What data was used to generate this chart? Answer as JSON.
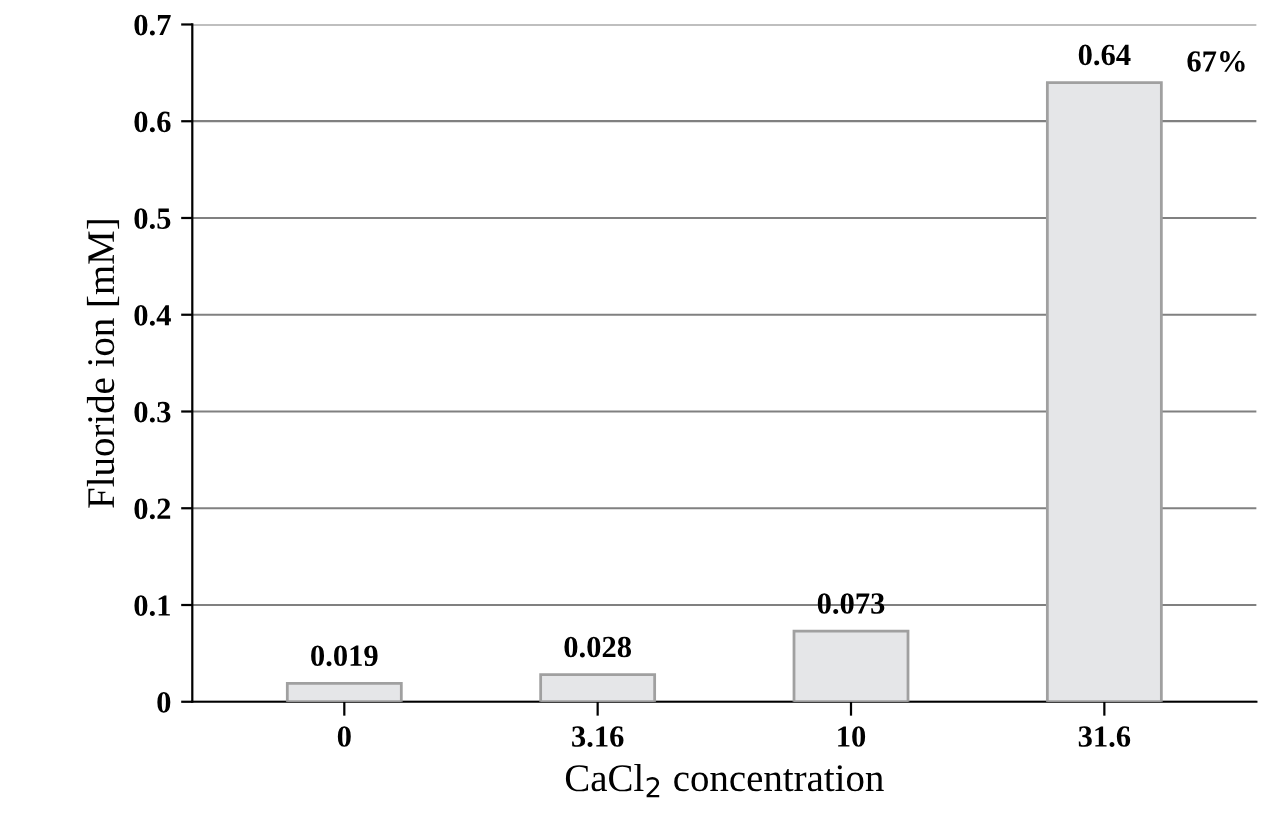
{
  "chart_data": {
    "type": "bar",
    "xlabel": "CaCl$_{2}$ concentration",
    "ylabel": "Fluoride ion [mM]",
    "categories": [
      "0",
      "3.16",
      "10",
      "31.6"
    ],
    "values": [
      0.019,
      0.028,
      0.073,
      0.64
    ],
    "color": "#e5e6e8",
    "ylim": [
      0,
      0.7
    ],
    "yticks": [
      0,
      0.1,
      0.2,
      0.3,
      0.4,
      0.5,
      0.6,
      0.7
    ],
    "grid": "y",
    "data_labels": true,
    "annotations": [
      {
        "text": "67%",
        "x": "31.6",
        "y": 0.64
      }
    ]
  }
}
